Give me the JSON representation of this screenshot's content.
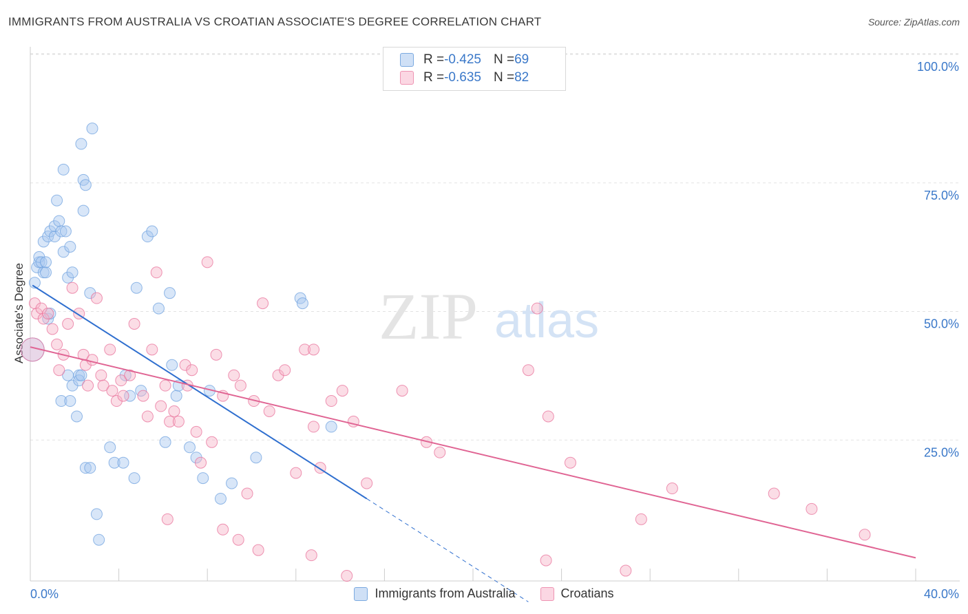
{
  "header": {
    "title": "IMMIGRANTS FROM AUSTRALIA VS CROATIAN ASSOCIATE'S DEGREE CORRELATION CHART",
    "source": "Source: ZipAtlas.com"
  },
  "watermark": {
    "zip": "ZIP",
    "atlas": "atlas"
  },
  "legend": {
    "rows": [
      {
        "r_label": "R = ",
        "r_value": "-0.425",
        "n_label": "N = ",
        "n_value": "69",
        "color": "#a9c8ef"
      },
      {
        "r_label": "R = ",
        "r_value": "-0.635",
        "n_label": "N = ",
        "n_value": "82",
        "color": "#f6b3c8"
      }
    ]
  },
  "chart_data": {
    "type": "scatter",
    "title": "IMMIGRANTS FROM AUSTRALIA VS CROATIAN ASSOCIATE'S DEGREE CORRELATION CHART",
    "xlabel": "",
    "ylabel": "Associate's Degree",
    "xlim": [
      0,
      40
    ],
    "ylim": [
      0,
      100
    ],
    "x_tick_labels": [
      "0.0%",
      "40.0%"
    ],
    "y_tick_labels": [
      "25.0%",
      "50.0%",
      "75.0%",
      "100.0%"
    ],
    "y_ticks": [
      25,
      50,
      75,
      100
    ],
    "grid": true,
    "legend_position": "top-center",
    "series": [
      {
        "name": "Immigrants from Australia",
        "color": "#6fa2df",
        "fill": "#a9c8ef",
        "trend": {
          "x0": 0.1,
          "y0": 57.5,
          "x1": 15.2,
          "y1": 16.0,
          "dash_to_x": 22.5
        },
        "points": [
          [
            0.1,
            45
          ],
          [
            0.2,
            58
          ],
          [
            0.3,
            61
          ],
          [
            0.4,
            62
          ],
          [
            0.4,
            63
          ],
          [
            0.5,
            62
          ],
          [
            0.6,
            60
          ],
          [
            0.7,
            60
          ],
          [
            0.7,
            62
          ],
          [
            0.8,
            51
          ],
          [
            0.9,
            52
          ],
          [
            0.6,
            66
          ],
          [
            0.8,
            67
          ],
          [
            0.9,
            68
          ],
          [
            1.1,
            67
          ],
          [
            1.1,
            69
          ],
          [
            1.2,
            74
          ],
          [
            1.3,
            70
          ],
          [
            1.4,
            68
          ],
          [
            1.5,
            64
          ],
          [
            1.6,
            68
          ],
          [
            1.7,
            59
          ],
          [
            1.8,
            65
          ],
          [
            1.9,
            60
          ],
          [
            1.5,
            80
          ],
          [
            2.3,
            85
          ],
          [
            2.4,
            78
          ],
          [
            2.5,
            77
          ],
          [
            2.4,
            72
          ],
          [
            2.7,
            56
          ],
          [
            2.8,
            88
          ],
          [
            1.4,
            35
          ],
          [
            1.7,
            40
          ],
          [
            1.8,
            35
          ],
          [
            1.9,
            38
          ],
          [
            2.1,
            32
          ],
          [
            2.2,
            40
          ],
          [
            2.2,
            39
          ],
          [
            2.3,
            40
          ],
          [
            2.5,
            22
          ],
          [
            2.7,
            22
          ],
          [
            3.0,
            13
          ],
          [
            3.1,
            8
          ],
          [
            3.6,
            26
          ],
          [
            3.8,
            23
          ],
          [
            4.2,
            23
          ],
          [
            4.3,
            40
          ],
          [
            4.5,
            36
          ],
          [
            4.7,
            20
          ],
          [
            5.0,
            37
          ],
          [
            4.8,
            57
          ],
          [
            5.3,
            67
          ],
          [
            5.5,
            68
          ],
          [
            5.8,
            53
          ],
          [
            6.1,
            27
          ],
          [
            6.4,
            42
          ],
          [
            6.6,
            36
          ],
          [
            6.7,
            38
          ],
          [
            6.3,
            56
          ],
          [
            7.2,
            26
          ],
          [
            7.5,
            24
          ],
          [
            7.8,
            20
          ],
          [
            8.1,
            37
          ],
          [
            8.6,
            16
          ],
          [
            9.1,
            19
          ],
          [
            10.2,
            24
          ],
          [
            12.2,
            55
          ],
          [
            12.3,
            54
          ],
          [
            13.6,
            30
          ]
        ]
      },
      {
        "name": "Croatians",
        "color": "#e8709a",
        "fill": "#f6b3c8",
        "trend": {
          "x0": 0.0,
          "y0": 45.5,
          "x1": 40.0,
          "y1": 4.5
        },
        "points": [
          [
            0.1,
            45
          ],
          [
            0.2,
            54
          ],
          [
            0.3,
            52
          ],
          [
            0.5,
            53
          ],
          [
            0.6,
            51
          ],
          [
            0.8,
            52
          ],
          [
            1.0,
            49
          ],
          [
            1.2,
            46
          ],
          [
            1.3,
            41
          ],
          [
            1.5,
            44
          ],
          [
            1.7,
            50
          ],
          [
            1.9,
            57
          ],
          [
            2.2,
            52
          ],
          [
            2.4,
            44
          ],
          [
            2.5,
            42
          ],
          [
            2.6,
            38
          ],
          [
            2.8,
            43
          ],
          [
            3.0,
            55
          ],
          [
            3.2,
            40
          ],
          [
            3.3,
            38
          ],
          [
            3.6,
            45
          ],
          [
            3.7,
            37
          ],
          [
            3.9,
            35
          ],
          [
            4.1,
            39
          ],
          [
            4.2,
            36
          ],
          [
            4.5,
            40
          ],
          [
            4.7,
            50
          ],
          [
            5.1,
            36
          ],
          [
            5.3,
            32
          ],
          [
            5.5,
            45
          ],
          [
            5.7,
            60
          ],
          [
            5.9,
            34
          ],
          [
            6.1,
            38
          ],
          [
            6.3,
            31
          ],
          [
            6.5,
            33
          ],
          [
            6.7,
            31
          ],
          [
            7.0,
            42
          ],
          [
            7.1,
            38
          ],
          [
            7.3,
            41
          ],
          [
            7.5,
            29
          ],
          [
            7.7,
            23
          ],
          [
            8.0,
            62
          ],
          [
            8.2,
            27
          ],
          [
            8.4,
            44
          ],
          [
            8.7,
            36
          ],
          [
            9.2,
            40
          ],
          [
            9.5,
            38
          ],
          [
            9.8,
            17
          ],
          [
            10.1,
            35
          ],
          [
            10.5,
            54
          ],
          [
            10.8,
            33
          ],
          [
            11.2,
            40
          ],
          [
            11.5,
            41
          ],
          [
            12.0,
            21
          ],
          [
            12.4,
            45
          ],
          [
            12.8,
            30
          ],
          [
            13.1,
            22
          ],
          [
            13.6,
            35
          ],
          [
            14.1,
            37
          ],
          [
            14.6,
            31
          ],
          [
            15.2,
            19
          ],
          [
            16.8,
            37
          ],
          [
            17.9,
            27
          ],
          [
            18.5,
            25
          ],
          [
            22.5,
            41
          ],
          [
            22.9,
            53
          ],
          [
            23.4,
            32
          ],
          [
            24.4,
            23
          ],
          [
            27.6,
            12
          ],
          [
            29.0,
            18
          ],
          [
            33.6,
            17
          ],
          [
            35.3,
            14
          ],
          [
            37.7,
            9
          ],
          [
            6.2,
            12
          ],
          [
            8.7,
            10
          ],
          [
            9.4,
            8
          ],
          [
            10.3,
            6
          ],
          [
            12.7,
            5
          ],
          [
            14.3,
            1
          ],
          [
            23.3,
            4
          ],
          [
            26.9,
            2
          ],
          [
            12.8,
            45
          ]
        ]
      }
    ]
  },
  "bottom_legend": [
    {
      "label": "Immigrants from Australia",
      "color": "#a9c8ef"
    },
    {
      "label": "Croatians",
      "color": "#f6b3c8"
    }
  ]
}
